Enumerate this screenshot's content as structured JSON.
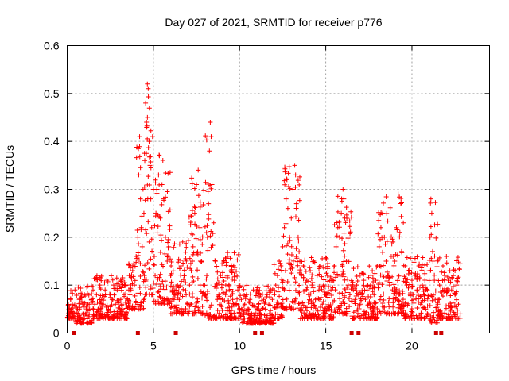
{
  "chart_data": {
    "type": "scatter",
    "title": "Day 027 of 2021, SRMTID for receiver p776",
    "xlabel": "GPS time / hours",
    "ylabel": "SRMTID / TECUs",
    "xlim": [
      0,
      24.5
    ],
    "ylim": [
      0,
      0.6
    ],
    "x_ticks": [
      0,
      5,
      10,
      15,
      20
    ],
    "x_tick_labels": [
      "0",
      "5",
      "10",
      "15",
      "20"
    ],
    "y_ticks": [
      0,
      0.1,
      0.2,
      0.3,
      0.4,
      0.5,
      0.6
    ],
    "y_tick_labels": [
      "0",
      "0.1",
      "0.2",
      "0.3",
      "0.4",
      "0.5",
      "0.6"
    ],
    "grid": true,
    "marker": "+",
    "color": "#ff0000",
    "data_gap_marker_color": "#cc0000",
    "data_gaps_at_hours": [
      0.4,
      4.1,
      6.3,
      10.9,
      11.3,
      16.5,
      16.9,
      21.4,
      21.7
    ],
    "envelope": {
      "description": "approximate per-interval value ranges read from the plot",
      "segments": [
        {
          "x": [
            0.0,
            0.5
          ],
          "y": [
            0.03,
            0.09
          ]
        },
        {
          "x": [
            0.5,
            1.5
          ],
          "y": [
            0.02,
            0.1
          ]
        },
        {
          "x": [
            1.5,
            3.5
          ],
          "y": [
            0.03,
            0.12
          ]
        },
        {
          "x": [
            3.5,
            4.0
          ],
          "y": [
            0.05,
            0.15
          ]
        },
        {
          "x": [
            4.0,
            4.5
          ],
          "y": [
            0.05,
            0.41
          ]
        },
        {
          "x": [
            4.5,
            5.0
          ],
          "y": [
            0.08,
            0.52
          ]
        },
        {
          "x": [
            5.0,
            6.0
          ],
          "y": [
            0.06,
            0.38
          ]
        },
        {
          "x": [
            6.0,
            7.0
          ],
          "y": [
            0.04,
            0.2
          ]
        },
        {
          "x": [
            7.0,
            8.0
          ],
          "y": [
            0.04,
            0.34
          ]
        },
        {
          "x": [
            8.0,
            8.5
          ],
          "y": [
            0.03,
            0.44
          ]
        },
        {
          "x": [
            8.5,
            10.0
          ],
          "y": [
            0.03,
            0.17
          ]
        },
        {
          "x": [
            10.0,
            12.0
          ],
          "y": [
            0.02,
            0.1
          ]
        },
        {
          "x": [
            12.0,
            12.5
          ],
          "y": [
            0.03,
            0.15
          ]
        },
        {
          "x": [
            12.5,
            13.5
          ],
          "y": [
            0.05,
            0.35
          ]
        },
        {
          "x": [
            13.5,
            15.5
          ],
          "y": [
            0.03,
            0.16
          ]
        },
        {
          "x": [
            15.5,
            16.5
          ],
          "y": [
            0.04,
            0.3
          ]
        },
        {
          "x": [
            16.5,
            18.0
          ],
          "y": [
            0.03,
            0.14
          ]
        },
        {
          "x": [
            18.0,
            19.5
          ],
          "y": [
            0.04,
            0.29
          ]
        },
        {
          "x": [
            19.5,
            21.0
          ],
          "y": [
            0.03,
            0.16
          ]
        },
        {
          "x": [
            21.0,
            21.5
          ],
          "y": [
            0.02,
            0.28
          ]
        },
        {
          "x": [
            21.5,
            22.8
          ],
          "y": [
            0.03,
            0.16
          ]
        }
      ]
    },
    "sample_points": [
      [
        0.1,
        0.05
      ],
      [
        0.2,
        0.07
      ],
      [
        0.3,
        0.06
      ],
      [
        0.45,
        0.09
      ],
      [
        0.6,
        0.05
      ],
      [
        0.7,
        0.07
      ],
      [
        0.8,
        0.03
      ],
      [
        0.9,
        0.06
      ],
      [
        1.0,
        0.08
      ],
      [
        1.1,
        0.04
      ],
      [
        1.2,
        0.06
      ],
      [
        1.3,
        0.05
      ],
      [
        1.4,
        0.07
      ],
      [
        1.5,
        0.09
      ],
      [
        1.6,
        0.06
      ],
      [
        1.7,
        0.08
      ],
      [
        1.8,
        0.05
      ],
      [
        1.9,
        0.1
      ],
      [
        2.0,
        0.07
      ],
      [
        2.1,
        0.06
      ],
      [
        2.2,
        0.09
      ],
      [
        2.3,
        0.11
      ],
      [
        2.4,
        0.05
      ],
      [
        2.5,
        0.08
      ],
      [
        2.6,
        0.07
      ],
      [
        2.7,
        0.1
      ],
      [
        2.8,
        0.06
      ],
      [
        2.9,
        0.09
      ],
      [
        3.0,
        0.07
      ],
      [
        3.1,
        0.11
      ],
      [
        3.2,
        0.05
      ],
      [
        3.3,
        0.08
      ],
      [
        3.4,
        0.1
      ],
      [
        3.5,
        0.07
      ],
      [
        3.6,
        0.12
      ],
      [
        3.7,
        0.09
      ],
      [
        3.8,
        0.14
      ],
      [
        3.9,
        0.1
      ],
      [
        4.0,
        0.16
      ],
      [
        4.1,
        0.2
      ],
      [
        4.15,
        0.33
      ],
      [
        4.2,
        0.41
      ],
      [
        4.25,
        0.28
      ],
      [
        4.3,
        0.22
      ],
      [
        4.35,
        0.18
      ],
      [
        4.4,
        0.3
      ],
      [
        4.45,
        0.25
      ],
      [
        4.5,
        0.36
      ],
      [
        4.55,
        0.48
      ],
      [
        4.6,
        0.44
      ],
      [
        4.65,
        0.52
      ],
      [
        4.7,
        0.51
      ],
      [
        4.75,
        0.4
      ],
      [
        4.8,
        0.35
      ],
      [
        4.85,
        0.28
      ],
      [
        4.9,
        0.22
      ],
      [
        4.95,
        0.41
      ],
      [
        5.0,
        0.3
      ],
      [
        5.05,
        0.16
      ],
      [
        5.1,
        0.12
      ],
      [
        5.15,
        0.25
      ],
      [
        5.2,
        0.3
      ],
      [
        5.3,
        0.33
      ],
      [
        5.35,
        0.37
      ],
      [
        5.4,
        0.24
      ],
      [
        5.5,
        0.31
      ],
      [
        5.6,
        0.28
      ],
      [
        5.7,
        0.2
      ],
      [
        5.8,
        0.15
      ],
      [
        5.9,
        0.18
      ],
      [
        6.0,
        0.12
      ],
      [
        6.1,
        0.09
      ],
      [
        6.2,
        0.08
      ],
      [
        6.4,
        0.1
      ],
      [
        6.5,
        0.07
      ],
      [
        6.6,
        0.14
      ],
      [
        6.7,
        0.19
      ],
      [
        6.8,
        0.12
      ],
      [
        6.9,
        0.08
      ],
      [
        7.0,
        0.06
      ],
      [
        7.1,
        0.1
      ],
      [
        7.2,
        0.13
      ],
      [
        7.3,
        0.18
      ],
      [
        7.4,
        0.25
      ],
      [
        7.5,
        0.31
      ],
      [
        7.6,
        0.34
      ],
      [
        7.7,
        0.22
      ],
      [
        7.8,
        0.15
      ],
      [
        7.9,
        0.1
      ],
      [
        8.0,
        0.08
      ],
      [
        8.1,
        0.12
      ],
      [
        8.2,
        0.27
      ],
      [
        8.25,
        0.38
      ],
      [
        8.3,
        0.44
      ],
      [
        8.35,
        0.41
      ],
      [
        8.4,
        0.31
      ],
      [
        8.5,
        0.23
      ],
      [
        8.6,
        0.15
      ],
      [
        8.7,
        0.1
      ],
      [
        8.8,
        0.08
      ],
      [
        8.9,
        0.12
      ],
      [
        9.0,
        0.07
      ],
      [
        9.1,
        0.15
      ],
      [
        9.2,
        0.1
      ],
      [
        9.3,
        0.16
      ],
      [
        9.4,
        0.09
      ],
      [
        9.5,
        0.13
      ],
      [
        9.6,
        0.07
      ],
      [
        9.7,
        0.11
      ],
      [
        9.8,
        0.06
      ],
      [
        9.9,
        0.09
      ],
      [
        10.0,
        0.05
      ],
      [
        10.1,
        0.07
      ],
      [
        10.2,
        0.04
      ],
      [
        10.3,
        0.06
      ],
      [
        10.4,
        0.08
      ],
      [
        10.5,
        0.05
      ],
      [
        10.6,
        0.07
      ],
      [
        10.7,
        0.04
      ],
      [
        10.8,
        0.09
      ],
      [
        11.0,
        0.05
      ],
      [
        11.1,
        0.06
      ],
      [
        11.2,
        0.04
      ],
      [
        11.4,
        0.07
      ],
      [
        11.5,
        0.05
      ],
      [
        11.6,
        0.08
      ],
      [
        11.7,
        0.06
      ],
      [
        11.8,
        0.09
      ],
      [
        11.9,
        0.07
      ],
      [
        12.0,
        0.08
      ],
      [
        12.1,
        0.1
      ],
      [
        12.2,
        0.12
      ],
      [
        12.3,
        0.15
      ],
      [
        12.4,
        0.14
      ],
      [
        12.5,
        0.18
      ],
      [
        12.6,
        0.22
      ],
      [
        12.7,
        0.28
      ],
      [
        12.75,
        0.32
      ],
      [
        12.8,
        0.26
      ],
      [
        12.9,
        0.2
      ],
      [
        13.0,
        0.24
      ],
      [
        13.1,
        0.3
      ],
      [
        13.2,
        0.35
      ],
      [
        13.25,
        0.33
      ],
      [
        13.3,
        0.27
      ],
      [
        13.4,
        0.2
      ],
      [
        13.5,
        0.15
      ],
      [
        13.6,
        0.12
      ],
      [
        13.7,
        0.14
      ],
      [
        13.8,
        0.09
      ],
      [
        13.9,
        0.11
      ],
      [
        14.0,
        0.08
      ],
      [
        14.1,
        0.13
      ],
      [
        14.2,
        0.1
      ],
      [
        14.3,
        0.15
      ],
      [
        14.4,
        0.07
      ],
      [
        14.5,
        0.12
      ],
      [
        14.6,
        0.09
      ],
      [
        14.7,
        0.14
      ],
      [
        14.8,
        0.06
      ],
      [
        14.9,
        0.1
      ],
      [
        15.0,
        0.08
      ],
      [
        15.1,
        0.12
      ],
      [
        15.2,
        0.05
      ],
      [
        15.3,
        0.09
      ],
      [
        15.4,
        0.11
      ],
      [
        15.5,
        0.14
      ],
      [
        15.6,
        0.18
      ],
      [
        15.7,
        0.22
      ],
      [
        15.8,
        0.2
      ],
      [
        15.9,
        0.25
      ],
      [
        16.0,
        0.3
      ],
      [
        16.05,
        0.28
      ],
      [
        16.1,
        0.24
      ],
      [
        16.2,
        0.15
      ],
      [
        16.3,
        0.1
      ],
      [
        16.4,
        0.08
      ],
      [
        16.6,
        0.09
      ],
      [
        16.7,
        0.07
      ],
      [
        16.8,
        0.1
      ],
      [
        17.0,
        0.06
      ],
      [
        17.1,
        0.08
      ],
      [
        17.2,
        0.11
      ],
      [
        17.3,
        0.07
      ],
      [
        17.4,
        0.09
      ],
      [
        17.5,
        0.06
      ],
      [
        17.6,
        0.1
      ],
      [
        17.7,
        0.13
      ],
      [
        17.8,
        0.08
      ],
      [
        17.9,
        0.11
      ],
      [
        18.0,
        0.14
      ],
      [
        18.1,
        0.18
      ],
      [
        18.2,
        0.22
      ],
      [
        18.3,
        0.25
      ],
      [
        18.4,
        0.2
      ],
      [
        18.5,
        0.15
      ],
      [
        18.6,
        0.12
      ],
      [
        18.7,
        0.1
      ],
      [
        18.8,
        0.16
      ],
      [
        18.9,
        0.19
      ],
      [
        19.0,
        0.15
      ],
      [
        19.1,
        0.22
      ],
      [
        19.2,
        0.29
      ],
      [
        19.3,
        0.21
      ],
      [
        19.4,
        0.17
      ],
      [
        19.5,
        0.23
      ],
      [
        19.6,
        0.14
      ],
      [
        19.7,
        0.1
      ],
      [
        19.8,
        0.13
      ],
      [
        19.9,
        0.08
      ],
      [
        20.0,
        0.11
      ],
      [
        20.1,
        0.07
      ],
      [
        20.2,
        0.12
      ],
      [
        20.3,
        0.09
      ],
      [
        20.4,
        0.14
      ],
      [
        20.5,
        0.06
      ],
      [
        20.6,
        0.1
      ],
      [
        20.7,
        0.08
      ],
      [
        20.8,
        0.05
      ],
      [
        20.9,
        0.09
      ],
      [
        21.0,
        0.13
      ],
      [
        21.05,
        0.2
      ],
      [
        21.1,
        0.28
      ],
      [
        21.15,
        0.25
      ],
      [
        21.2,
        0.17
      ],
      [
        21.3,
        0.11
      ],
      [
        21.35,
        0.07
      ],
      [
        21.5,
        0.06
      ],
      [
        21.6,
        0.1
      ],
      [
        21.8,
        0.14
      ],
      [
        21.9,
        0.12
      ],
      [
        22.0,
        0.16
      ],
      [
        22.1,
        0.11
      ],
      [
        22.2,
        0.13
      ],
      [
        22.3,
        0.09
      ],
      [
        22.4,
        0.12
      ],
      [
        22.5,
        0.08
      ],
      [
        22.6,
        0.1
      ],
      [
        22.7,
        0.06
      ],
      [
        22.8,
        0.04
      ]
    ]
  }
}
